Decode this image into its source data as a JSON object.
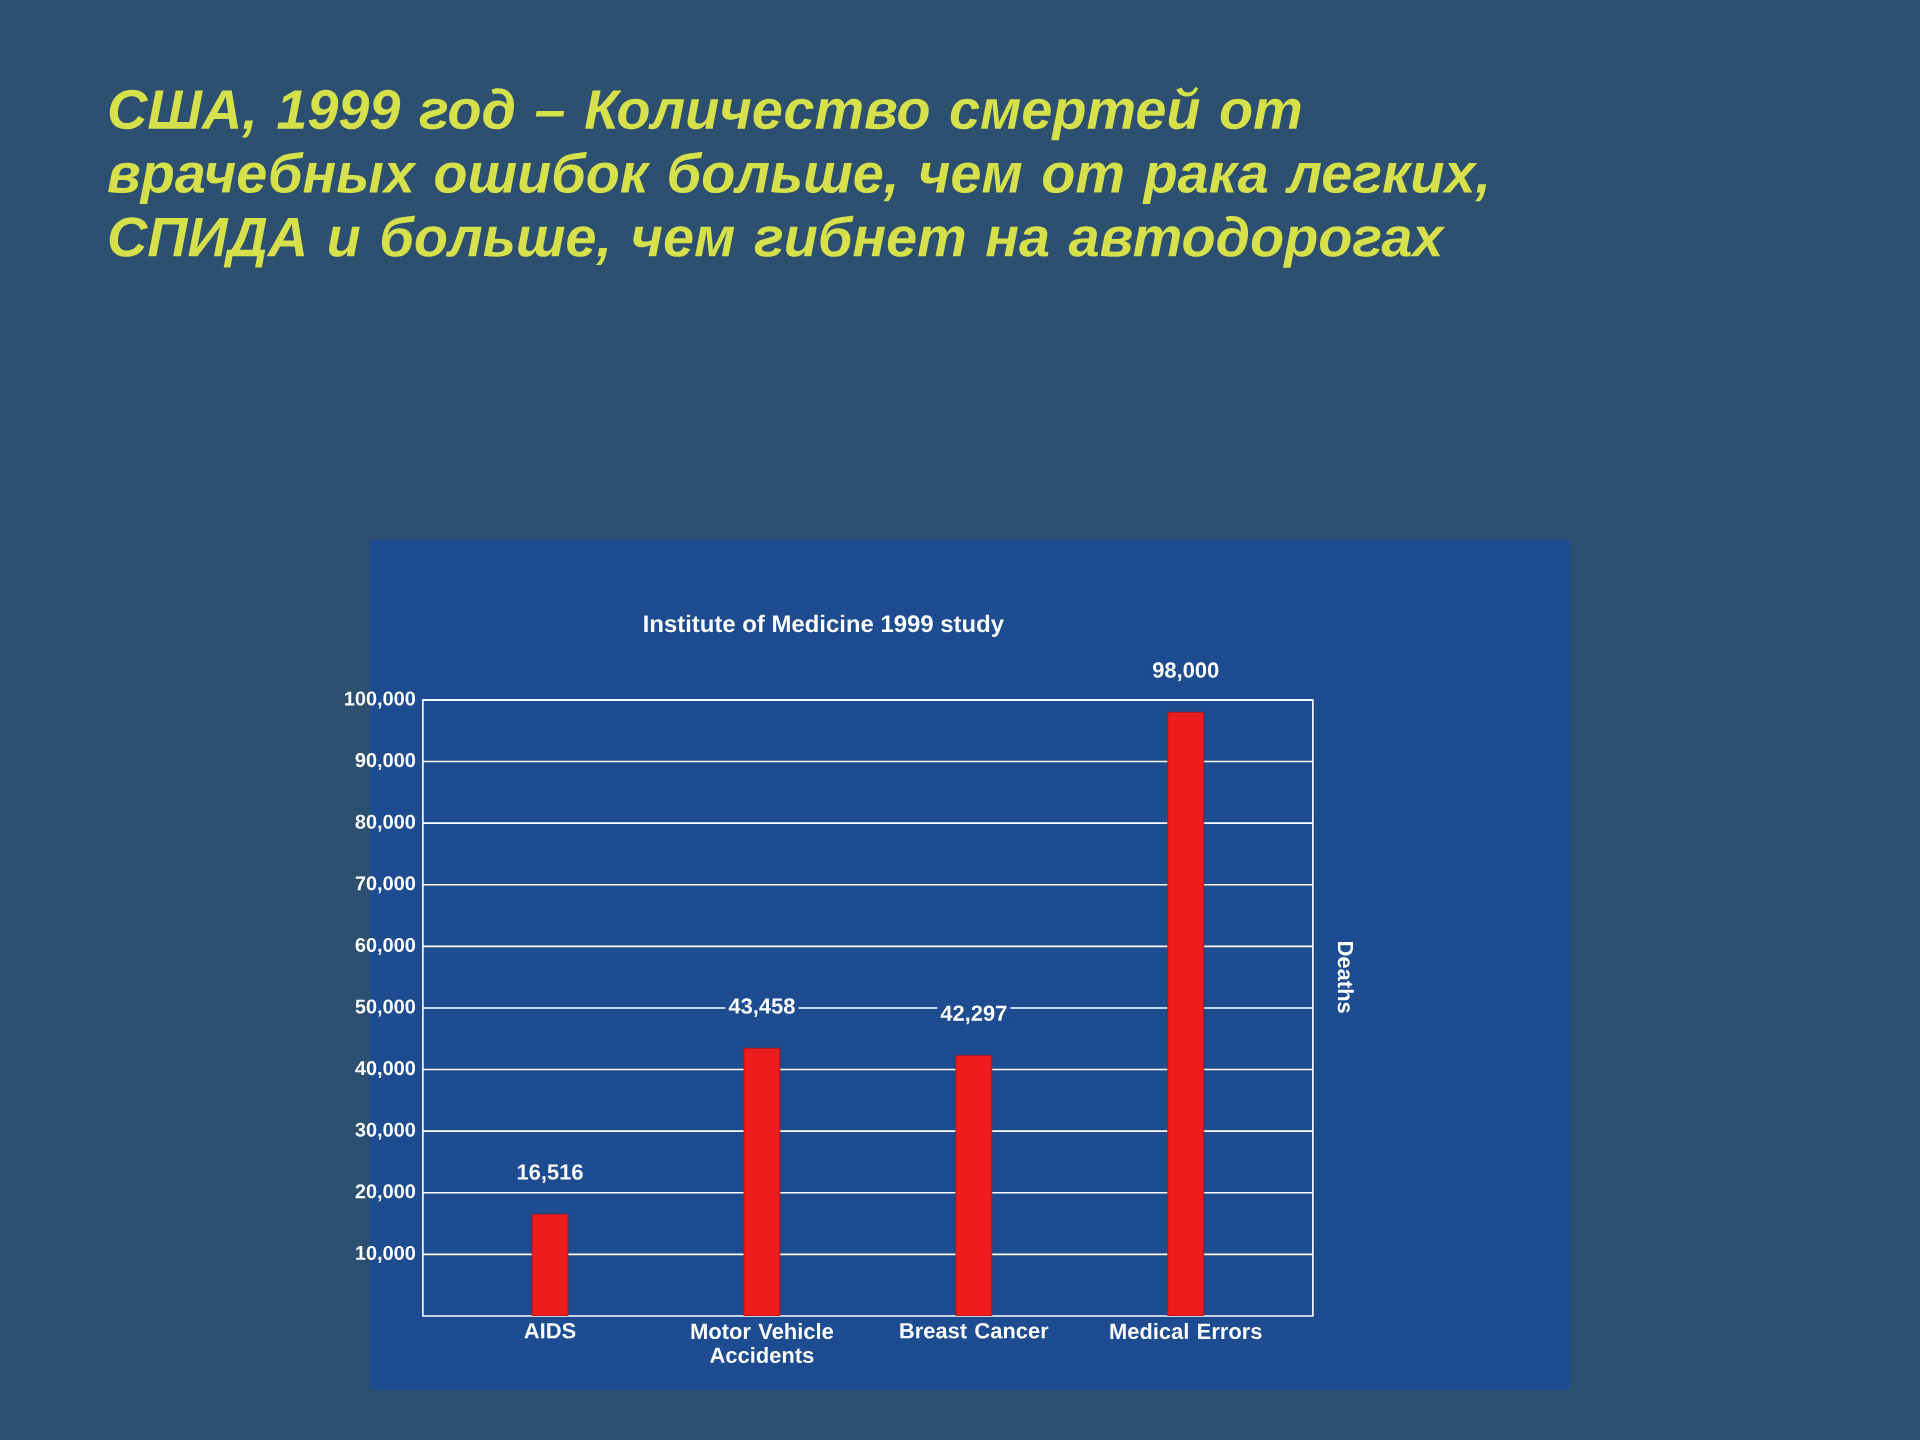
{
  "chart_data": {
    "type": "bar",
    "title": "США, 1999 год – Количество смертей от врачебных ошибок больше, чем от рака легких, СПИДА и больше, чем гибнет на автодорогах",
    "subtitle": "Institute of Medicine 1999 study",
    "ylabel": "Deaths",
    "categories": [
      "AIDS",
      "Motor Vehicle Accidents",
      "Breast Cancer",
      "Medical Errors"
    ],
    "values": [
      16516,
      43458,
      42297,
      98000
    ],
    "value_labels": [
      "16,516",
      "43,458",
      "42,297",
      "98,000"
    ],
    "color": "#ee1c1c",
    "ylim": [
      0,
      100000
    ],
    "yticks": [
      {
        "value": 10000,
        "label": "10,000"
      },
      {
        "value": 20000,
        "label": "20,000"
      },
      {
        "value": 30000,
        "label": "30,000"
      },
      {
        "value": 40000,
        "label": "40,000"
      },
      {
        "value": 50000,
        "label": "50,000"
      },
      {
        "value": 60000,
        "label": "60,000"
      },
      {
        "value": 70000,
        "label": "70,000"
      },
      {
        "value": 80000,
        "label": "80,000"
      },
      {
        "value": 90000,
        "label": "90,000"
      },
      {
        "value": 100000,
        "label": "100,000"
      }
    ],
    "grid": "y"
  }
}
